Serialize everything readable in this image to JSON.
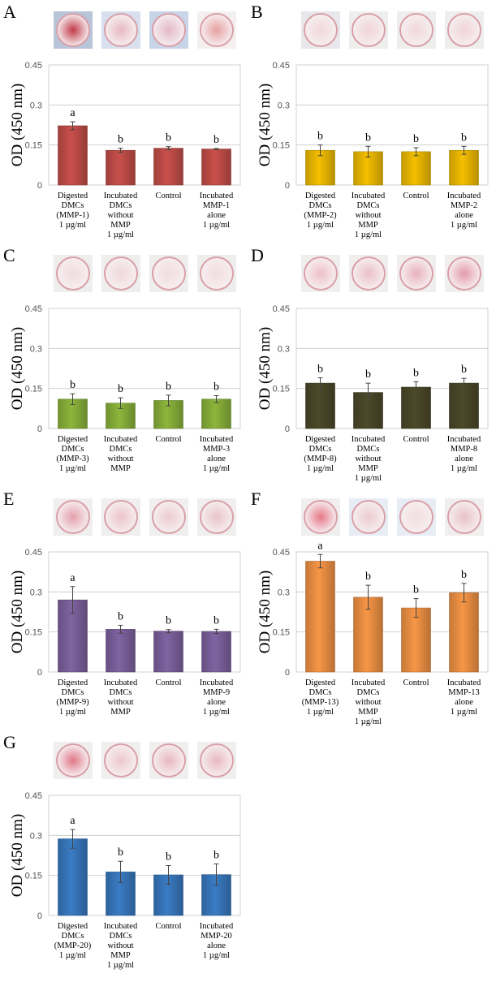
{
  "chart_data": [
    {
      "type": "bar",
      "panel": "A",
      "ylabel": "OD (450 nm)",
      "ylim": [
        0,
        0.45
      ],
      "yticks": [
        "0",
        "0.15",
        "0.3",
        "0.45"
      ],
      "color": "#c9504b",
      "categories": [
        "Digested\nDMCs\n(MMP-1)\n1 µg/ml",
        "Incubated\nDMCs\nwithout\nMMP\n1 µg/ml",
        "Control",
        "Incubated\nMMP-1\nalone\n1 µg/ml"
      ],
      "values": [
        0.222,
        0.13,
        0.138,
        0.135
      ],
      "errors": [
        0.015,
        0.008,
        0.006,
        0.002
      ],
      "significance": [
        "a",
        "b",
        "b",
        "b"
      ],
      "dish_tint": [
        "#c23a48",
        "#e8b8c4",
        "#e3b8c8",
        "#e8a0a0"
      ],
      "dish_bg": [
        "#b8c4d8",
        "#d8e0ee",
        "#c8d4e8",
        "#f4f0f0"
      ]
    },
    {
      "type": "bar",
      "panel": "B",
      "ylabel": "OD (450 nm)",
      "ylim": [
        0,
        0.45
      ],
      "yticks": [
        "0",
        "0.15",
        "0.3",
        "0.45"
      ],
      "color": "#f5c000",
      "categories": [
        "Digested\nDMCs\n(MMP-2)\n1 µg/ml",
        "Incubated\nDMCs\nwithout\nMMP\n1 µg/ml",
        "Control",
        "Incubated\nMMP-2\nalone\n1 µg/ml"
      ],
      "values": [
        0.13,
        0.125,
        0.125,
        0.13
      ],
      "errors": [
        0.02,
        0.02,
        0.015,
        0.015
      ],
      "significance": [
        "b",
        "b",
        "b",
        "b"
      ],
      "dish_tint": [
        "#f0d8dc",
        "#f0d4d8",
        "#f0d8dc",
        "#f0d4d8"
      ],
      "dish_bg": [
        "#e8e8ec",
        "#eeeeee",
        "#eeeeee",
        "#eeeeee"
      ]
    },
    {
      "type": "bar",
      "panel": "C",
      "ylabel": "OD (450 nm)",
      "ylim": [
        0,
        0.45
      ],
      "yticks": [
        "0",
        "0.15",
        "0.3",
        "0.45"
      ],
      "color": "#8db63c",
      "categories": [
        "Digested\nDMCs\n(MMP-3)\n1 µg/ml",
        "Incubated\nDMCs\nwithout\nMMP",
        "Control",
        "Incubated\nMMP-3\nalone\n1 µg/ml"
      ],
      "values": [
        0.11,
        0.095,
        0.105,
        0.11
      ],
      "errors": [
        0.02,
        0.02,
        0.02,
        0.013
      ],
      "significance": [
        "b",
        "b",
        "b",
        "b"
      ],
      "dish_tint": [
        "#f2dce0",
        "#f0d8dc",
        "#f2dce0",
        "#f2dce0"
      ],
      "dish_bg": [
        "#eeeeee",
        "#eeeeee",
        "#eeeeee",
        "#eeeeee"
      ]
    },
    {
      "type": "bar",
      "panel": "D",
      "ylabel": "OD (450 nm)",
      "ylim": [
        0,
        0.45
      ],
      "yticks": [
        "0",
        "0.15",
        "0.3",
        "0.45"
      ],
      "color": "#4d4a2a",
      "categories": [
        "Digested\nDMCs\n(MMP-8)\n1 µg/ml",
        "Incubated\nDMCs\nwithout\nMMP\n1 µg/ml",
        "Control",
        "Incubated\nMMP-8\nalone\n1 µg/ml"
      ],
      "values": [
        0.17,
        0.135,
        0.155,
        0.17
      ],
      "errors": [
        0.02,
        0.035,
        0.02,
        0.018
      ],
      "significance": [
        "b",
        "b",
        "b",
        "b"
      ],
      "dish_tint": [
        "#eec0c8",
        "#eac0c8",
        "#e8b0bc",
        "#e49aa8"
      ],
      "dish_bg": [
        "#f0eeee",
        "#f0eeee",
        "#f0eeee",
        "#f0eeee"
      ]
    },
    {
      "type": "bar",
      "panel": "E",
      "ylabel": "OD (450 nm)",
      "ylim": [
        0,
        0.45
      ],
      "yticks": [
        "0",
        "0.15",
        "0.3",
        "0.45"
      ],
      "color": "#8064a2",
      "categories": [
        "Digested\nDMCs\n(MMP-9)\n1 µg/ml",
        "Incubated\nDMCs\nwithout\nMMP",
        "Control",
        "Incubated\nMMP-9\nalone\n1 µg/ml"
      ],
      "values": [
        0.27,
        0.16,
        0.153,
        0.152
      ],
      "errors": [
        0.05,
        0.015,
        0.006,
        0.008
      ],
      "significance": [
        "a",
        "b",
        "b",
        "b"
      ],
      "dish_tint": [
        "#e4a0ac",
        "#ecc4c8",
        "#ecccd0",
        "#e8c4c8"
      ],
      "dish_bg": [
        "#f0eeee",
        "#f0eeee",
        "#f0eeee",
        "#f0eeee"
      ]
    },
    {
      "type": "bar",
      "panel": "F",
      "ylabel": "OD (450 nm)",
      "ylim": [
        0,
        0.45
      ],
      "yticks": [
        "0",
        "0.15",
        "0.3",
        "0.45"
      ],
      "color": "#f79646",
      "categories": [
        "Digested\nDMCs\n(MMP-13)\n1 µg/ml",
        "Incubated\nDMCs\nwithout\nMMP\n1 µg/ml",
        "Control",
        "Incubated\nMMP-13\nalone\n1 µg/ml"
      ],
      "values": [
        0.415,
        0.28,
        0.24,
        0.297
      ],
      "errors": [
        0.025,
        0.045,
        0.035,
        0.035
      ],
      "significance": [
        "a",
        "b",
        "b",
        "b"
      ],
      "dish_tint": [
        "#e87888",
        "#ecccd0",
        "#f2dee0",
        "#e8c0c4"
      ],
      "dish_bg": [
        "#f0eeee",
        "#e8ecf4",
        "#e8ecf4",
        "#f0eeee"
      ]
    },
    {
      "type": "bar",
      "panel": "G",
      "ylabel": "OD (450 nm)",
      "ylim": [
        0,
        0.45
      ],
      "yticks": [
        "0",
        "0.15",
        "0.3",
        "0.45"
      ],
      "color": "#3a7cc4",
      "categories": [
        "Digested\nDMCs\n(MMP-20)\n1 µg/ml",
        "Incubated\nDMCs\nwithout\nMMP\n1 µg/ml",
        "Control",
        "Incubated\nMMP-20\nalone\n1 µg/ml"
      ],
      "values": [
        0.287,
        0.163,
        0.152,
        0.153
      ],
      "errors": [
        0.035,
        0.04,
        0.035,
        0.04
      ],
      "significance": [
        "a",
        "b",
        "b",
        "b"
      ],
      "dish_tint": [
        "#e07888",
        "#ecc8cc",
        "#e8b8c0",
        "#e8b8c0"
      ],
      "dish_bg": [
        "#f0eeee",
        "#f0eeee",
        "#f0eeee",
        "#f0eeee"
      ]
    }
  ]
}
